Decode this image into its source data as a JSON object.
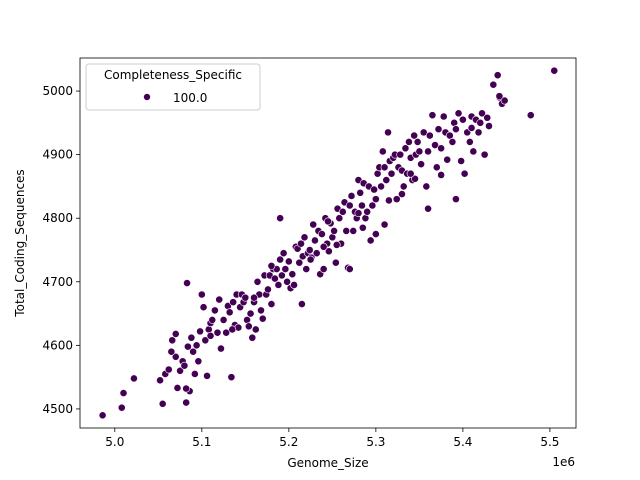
{
  "chart_data": {
    "type": "scatter",
    "title": "",
    "xlabel": "Genome_Size",
    "ylabel": "Total_Coding_Sequences",
    "x_offset_text": "1e6",
    "xlim": [
      4.96,
      5.53
    ],
    "ylim": [
      4470,
      5052
    ],
    "x_ticks": [
      5.0,
      5.1,
      5.2,
      5.3,
      5.4,
      5.5
    ],
    "x_tick_labels": [
      "5.0",
      "5.1",
      "5.2",
      "5.3",
      "5.4",
      "5.5"
    ],
    "y_ticks": [
      4500,
      4600,
      4700,
      4800,
      4900,
      5000
    ],
    "y_tick_labels": [
      "4500",
      "4600",
      "4700",
      "4800",
      "4900",
      "5000"
    ],
    "grid": false,
    "legend": {
      "title": "Completeness_Specific",
      "placement": "upper-left",
      "entries": [
        {
          "label": "100.0",
          "color": "#440154"
        }
      ]
    },
    "series": [
      {
        "name": "100.0",
        "color": "#440154",
        "x": [
          4.986,
          5.008,
          5.01,
          5.022,
          5.052,
          5.055,
          5.058,
          5.062,
          5.066,
          5.07,
          5.072,
          5.075,
          5.078,
          5.08,
          5.082,
          5.084,
          5.086,
          5.088,
          5.09,
          5.092,
          5.094,
          5.096,
          5.098,
          5.1,
          5.102,
          5.104,
          5.106,
          5.108,
          5.11,
          5.112,
          5.115,
          5.118,
          5.12,
          5.122,
          5.125,
          5.128,
          5.13,
          5.132,
          5.134,
          5.136,
          5.138,
          5.14,
          5.142,
          5.144,
          5.146,
          5.148,
          5.15,
          5.152,
          5.154,
          5.156,
          5.158,
          5.16,
          5.162,
          5.164,
          5.166,
          5.168,
          5.17,
          5.172,
          5.174,
          5.176,
          5.178,
          5.18,
          5.182,
          5.184,
          5.186,
          5.188,
          5.19,
          5.192,
          5.194,
          5.196,
          5.198,
          5.2,
          5.202,
          5.204,
          5.206,
          5.208,
          5.21,
          5.212,
          5.214,
          5.216,
          5.218,
          5.22,
          5.222,
          5.224,
          5.226,
          5.228,
          5.23,
          5.232,
          5.234,
          5.236,
          5.238,
          5.24,
          5.242,
          5.244,
          5.246,
          5.248,
          5.25,
          5.252,
          5.254,
          5.256,
          5.258,
          5.26,
          5.262,
          5.264,
          5.266,
          5.268,
          5.27,
          5.272,
          5.274,
          5.276,
          5.278,
          5.28,
          5.282,
          5.284,
          5.286,
          5.288,
          5.29,
          5.292,
          5.294,
          5.296,
          5.298,
          5.3,
          5.302,
          5.304,
          5.306,
          5.308,
          5.31,
          5.312,
          5.314,
          5.316,
          5.318,
          5.32,
          5.322,
          5.324,
          5.326,
          5.328,
          5.33,
          5.332,
          5.334,
          5.336,
          5.338,
          5.34,
          5.342,
          5.344,
          5.346,
          5.348,
          5.35,
          5.352,
          5.355,
          5.358,
          5.36,
          5.362,
          5.365,
          5.368,
          5.37,
          5.372,
          5.375,
          5.378,
          5.38,
          5.382,
          5.385,
          5.388,
          5.39,
          5.392,
          5.395,
          5.398,
          5.4,
          5.402,
          5.405,
          5.408,
          5.41,
          5.412,
          5.415,
          5.418,
          5.42,
          5.422,
          5.425,
          5.428,
          5.43,
          5.435,
          5.44,
          5.442,
          5.445,
          5.448,
          5.478,
          5.505,
          5.083,
          5.065,
          5.07,
          5.135,
          5.19,
          5.245,
          5.27,
          5.3,
          5.33,
          5.36,
          5.41,
          5.442,
          5.082,
          5.215,
          5.225,
          5.255,
          5.285,
          5.315,
          5.345,
          5.375,
          5.392,
          5.16,
          5.11,
          5.18,
          5.24,
          5.31,
          5.28,
          5.34
        ],
        "y": [
          4490,
          4502,
          4525,
          4548,
          4545,
          4508,
          4555,
          4562,
          4608,
          4582,
          4533,
          4560,
          4575,
          4568,
          4510,
          4598,
          4528,
          4612,
          4590,
          4555,
          4600,
          4575,
          4622,
          4680,
          4660,
          4608,
          4552,
          4625,
          4635,
          4640,
          4655,
          4620,
          4672,
          4595,
          4640,
          4620,
          4662,
          4652,
          4550,
          4668,
          4632,
          4680,
          4628,
          4660,
          4680,
          4668,
          4675,
          4640,
          4630,
          4650,
          4612,
          4668,
          4625,
          4700,
          4680,
          4655,
          4642,
          4710,
          4680,
          4688,
          4710,
          4665,
          4720,
          4705,
          4720,
          4695,
          4800,
          4710,
          4745,
          4720,
          4700,
          4732,
          4690,
          4712,
          4695,
          4755,
          4752,
          4730,
          4760,
          4740,
          4770,
          4720,
          4745,
          4750,
          4738,
          4790,
          4765,
          4745,
          4780,
          4712,
          4775,
          4720,
          4800,
          4760,
          4748,
          4792,
          4770,
          4780,
          4730,
          4815,
          4800,
          4760,
          4810,
          4825,
          4780,
          4722,
          4820,
          4835,
          4780,
          4810,
          4800,
          4860,
          4840,
          4820,
          4855,
          4800,
          4810,
          4850,
          4765,
          4820,
          4845,
          4830,
          4870,
          4880,
          4850,
          4905,
          4880,
          4860,
          4935,
          4890,
          4870,
          4895,
          4900,
          4830,
          4880,
          4900,
          4875,
          4850,
          4910,
          4870,
          4920,
          4895,
          4860,
          4930,
          4900,
          4920,
          4905,
          4885,
          4935,
          4850,
          4815,
          4930,
          4962,
          4915,
          4880,
          4940,
          4910,
          4960,
          4935,
          4892,
          4930,
          4920,
          4950,
          4940,
          4965,
          4890,
          4955,
          4870,
          4935,
          4920,
          4960,
          4905,
          4955,
          4935,
          4950,
          4965,
          4900,
          4958,
          4945,
          5010,
          5025,
          4990,
          4980,
          4985,
          4962,
          5032,
          4698,
          4590,
          4618,
          4625,
          4735,
          4795,
          4720,
          4775,
          4838,
          4905,
          4942,
          4992,
          4532,
          4665,
          4735,
          4758,
          4785,
          4828,
          4862,
          4868,
          4830,
          4675,
          4615,
          4725,
          4755,
          4790,
          4808,
          4870
        ]
      }
    ]
  }
}
